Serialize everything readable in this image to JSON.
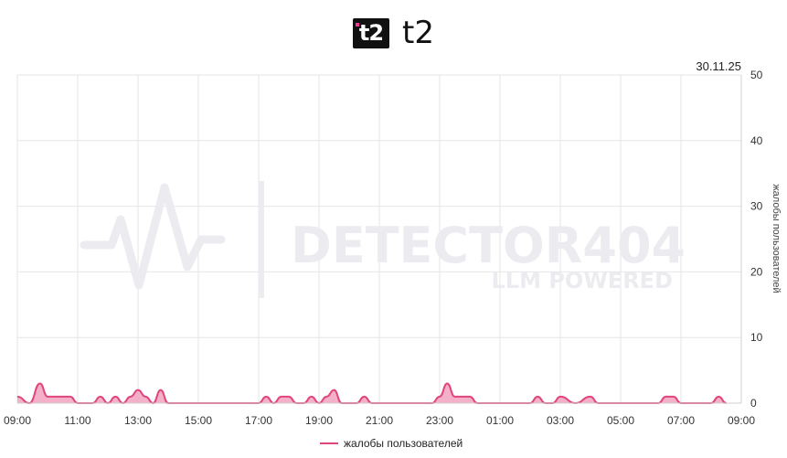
{
  "header": {
    "logo_text": "t2",
    "brand": "t2"
  },
  "watermark": {
    "line1": "DETECTOR404",
    "line2": "LLM POWERED"
  },
  "chart_data": {
    "type": "area",
    "date_label": "30.11.25",
    "ylabel": "жалобы пользователей",
    "ylim": [
      0,
      50
    ],
    "y_ticks": [
      "0",
      "10",
      "20",
      "30",
      "40",
      "50"
    ],
    "x_ticks": [
      "09:00",
      "11:00",
      "13:00",
      "15:00",
      "17:00",
      "19:00",
      "21:00",
      "23:00",
      "01:00",
      "03:00",
      "05:00",
      "07:00",
      "09:00"
    ],
    "grid": true,
    "legend_position": "bottom-center",
    "series": [
      {
        "name": "жалобы пользователей",
        "color": "#e0457b",
        "fill": "#f2a2bf",
        "x_hours": [
          0,
          0.4,
          0.75,
          1.0,
          1.25,
          1.5,
          1.75,
          2.0,
          2.25,
          2.5,
          2.75,
          3.0,
          3.25,
          3.5,
          3.75,
          4.0,
          4.25,
          4.5,
          4.75,
          5.0,
          5.5,
          6.0,
          6.5,
          7.0,
          7.5,
          8.0,
          8.25,
          8.5,
          8.75,
          9.0,
          9.25,
          9.5,
          9.75,
          10.0,
          10.25,
          10.5,
          10.75,
          11.0,
          11.25,
          11.5,
          11.75,
          12.0,
          12.5,
          12.75,
          13.0,
          13.25,
          13.5,
          13.75,
          14.0,
          14.25,
          14.5,
          14.75,
          15.0,
          15.25,
          15.5,
          15.75,
          16.0,
          16.25,
          16.5,
          16.75,
          17.0,
          17.25,
          17.5,
          17.75,
          18.0,
          18.5,
          19.0,
          19.25,
          19.5,
          19.75,
          20.0,
          20.5,
          21.0,
          21.25,
          21.5,
          21.75,
          22.0,
          22.5,
          23.0,
          23.25,
          23.5
        ],
        "values": [
          1,
          0,
          3,
          1,
          1,
          1,
          1,
          0,
          0,
          0,
          1,
          0,
          1,
          0,
          1,
          2,
          1,
          0,
          2,
          0,
          0,
          0,
          0,
          0,
          0,
          0,
          1,
          0,
          1,
          1,
          0,
          0,
          1,
          0,
          1,
          2,
          0,
          0,
          0,
          1,
          0,
          0,
          0,
          0,
          0,
          0,
          0,
          0,
          1,
          3,
          1,
          1,
          1,
          0,
          0,
          0,
          0,
          0,
          0,
          0,
          0,
          1,
          0,
          0,
          1,
          0,
          1,
          0,
          0,
          0,
          0,
          0,
          0,
          0,
          1,
          1,
          0,
          0,
          0,
          1,
          0
        ]
      }
    ]
  }
}
